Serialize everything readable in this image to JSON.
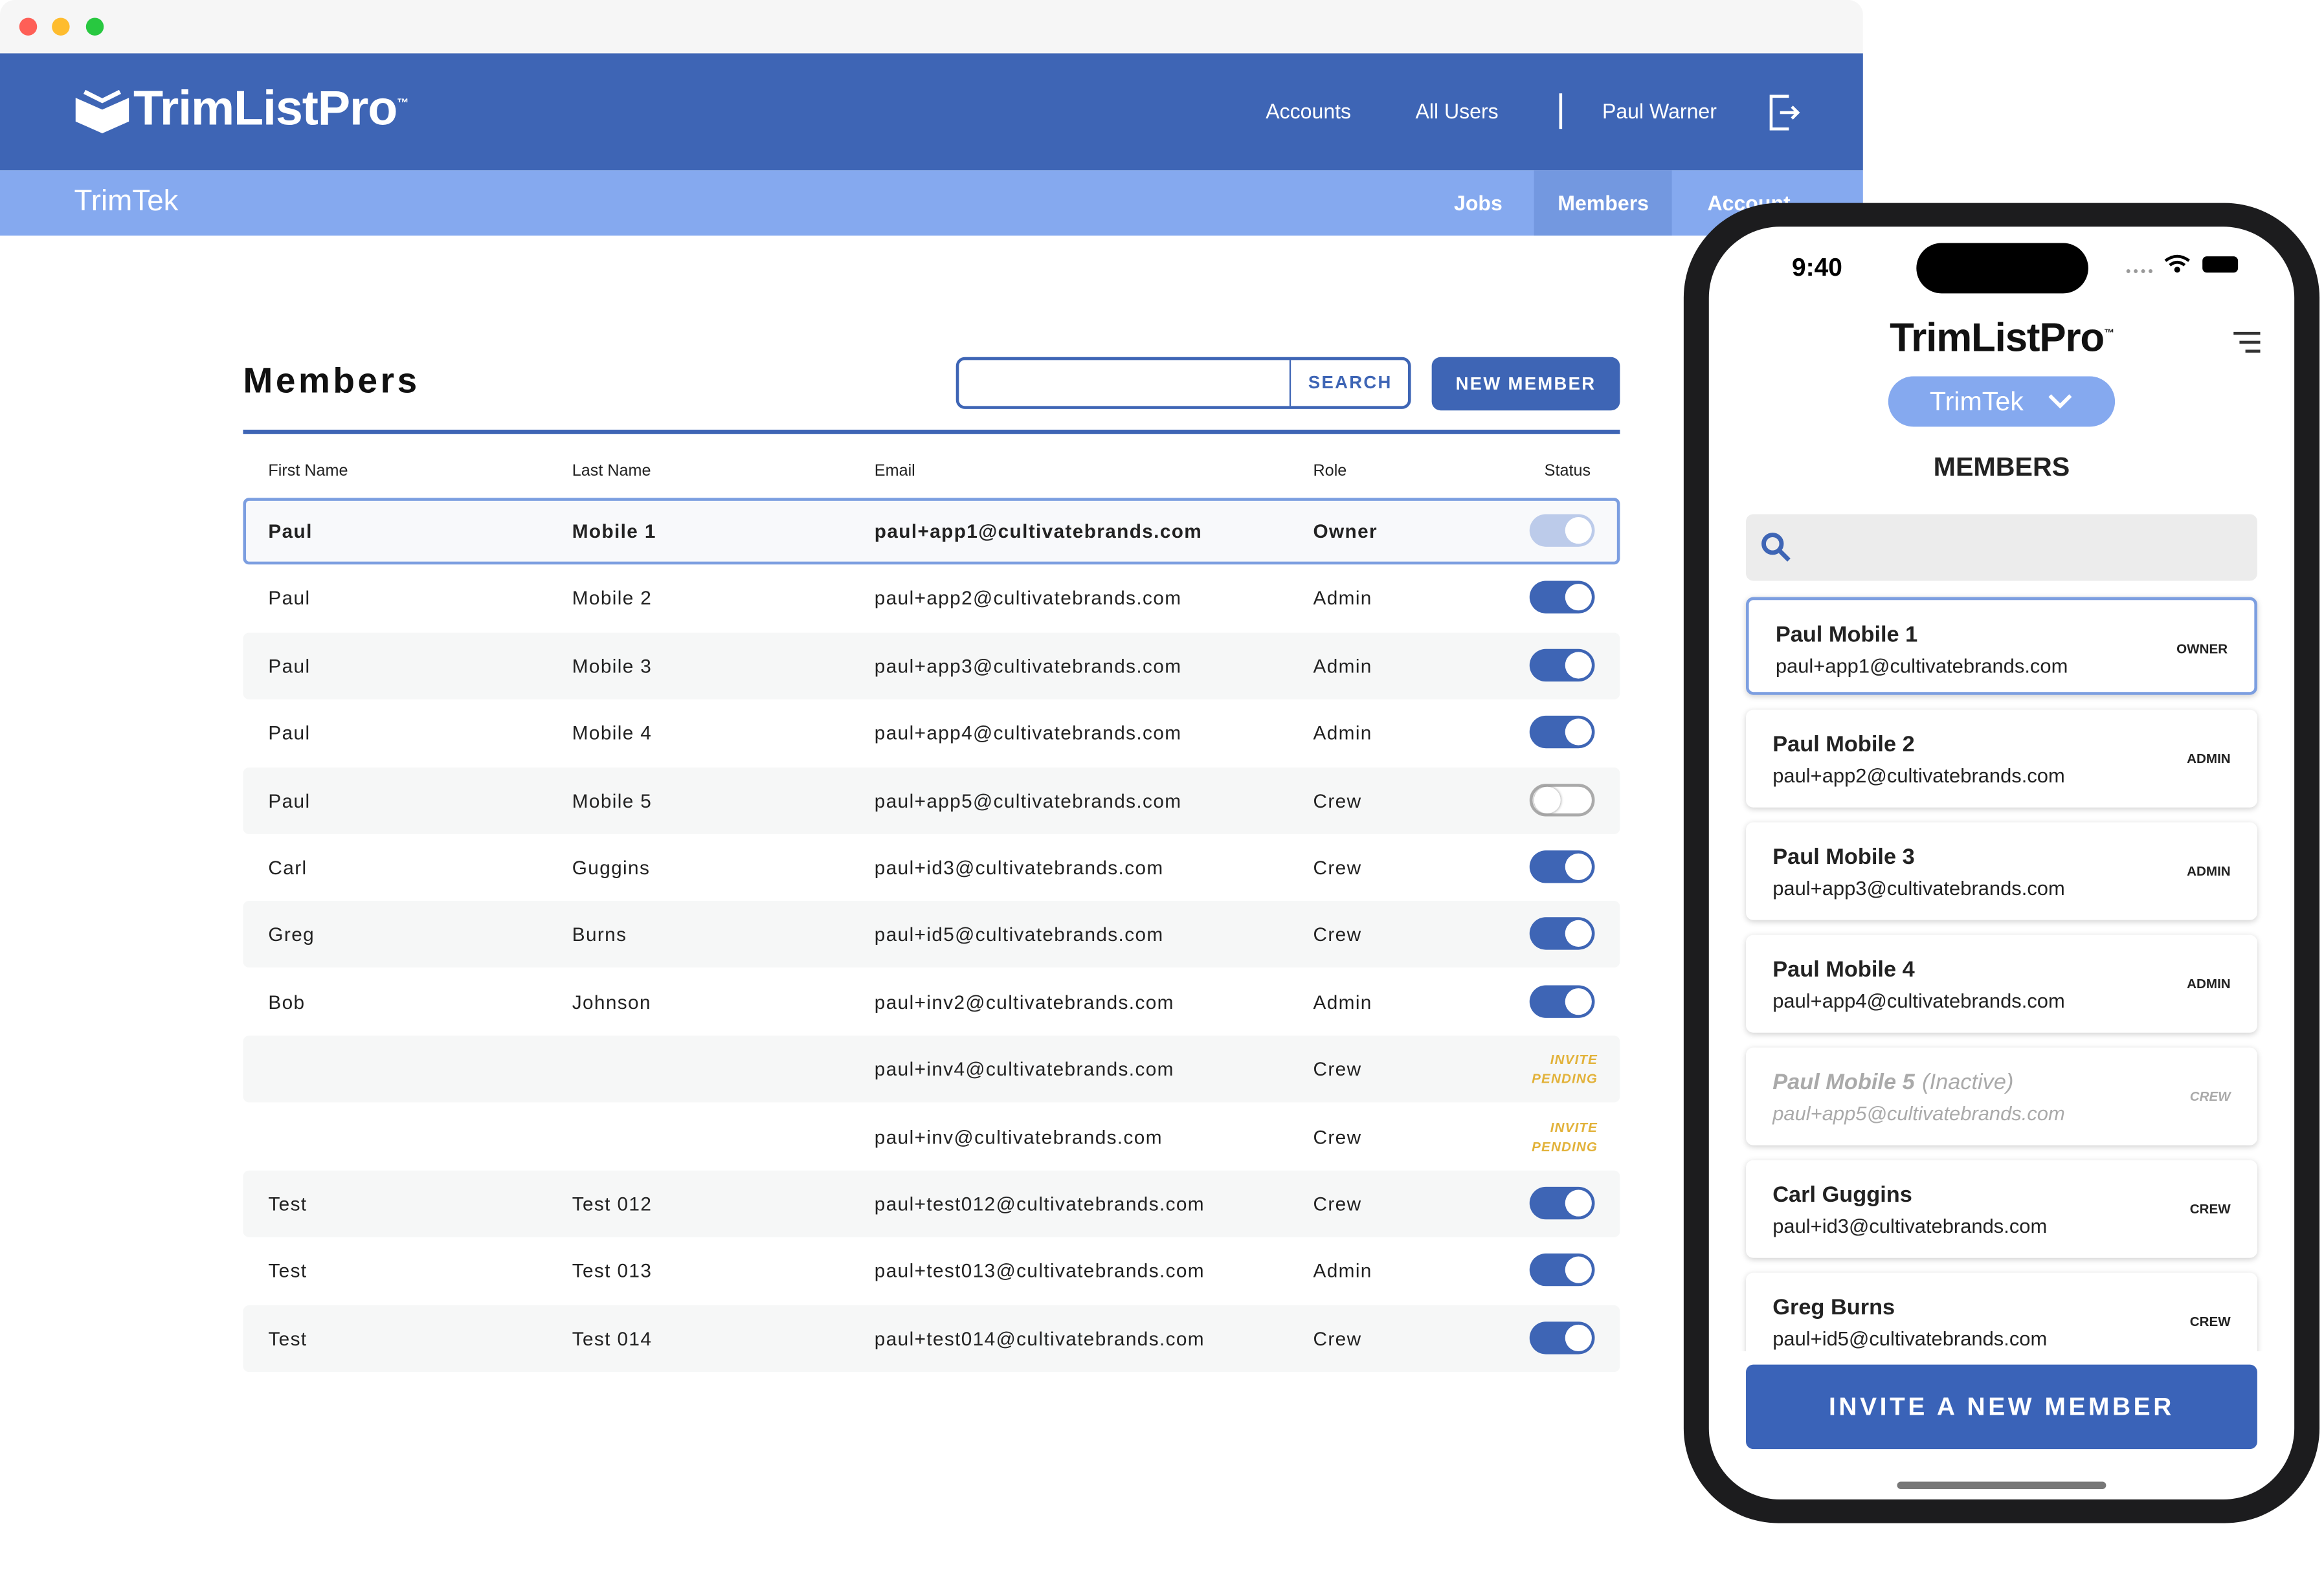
{
  "window": {
    "brand": "TrimListPro",
    "trademark": "™",
    "nav": [
      "Accounts",
      "All Users"
    ],
    "user": "Paul Warner",
    "org": "TrimTek",
    "tabs": [
      "Jobs",
      "Members",
      "Account"
    ],
    "active_tab": 1
  },
  "members_page": {
    "title": "Members",
    "search_button": "SEARCH",
    "new_button": "NEW MEMBER",
    "columns": [
      "First Name",
      "Last Name",
      "Email",
      "Role",
      "Status"
    ],
    "selected_row": 0,
    "rows": [
      {
        "first": "Paul",
        "last": "Mobile 1",
        "email": "paul+app1@cultivatebrands.com",
        "role": "Owner",
        "toggle": "disabled"
      },
      {
        "first": "Paul",
        "last": "Mobile 2",
        "email": "paul+app2@cultivatebrands.com",
        "role": "Admin",
        "toggle": "on"
      },
      {
        "first": "Paul",
        "last": "Mobile 3",
        "email": "paul+app3@cultivatebrands.com",
        "role": "Admin",
        "toggle": "on"
      },
      {
        "first": "Paul",
        "last": "Mobile 4",
        "email": "paul+app4@cultivatebrands.com",
        "role": "Admin",
        "toggle": "on"
      },
      {
        "first": "Paul",
        "last": "Mobile 5",
        "email": "paul+app5@cultivatebrands.com",
        "role": "Crew",
        "toggle": "off"
      },
      {
        "first": "Carl",
        "last": "Guggins",
        "email": "paul+id3@cultivatebrands.com",
        "role": "Crew",
        "toggle": "on"
      },
      {
        "first": "Greg",
        "last": "Burns",
        "email": "paul+id5@cultivatebrands.com",
        "role": "Crew",
        "toggle": "on"
      },
      {
        "first": "Bob",
        "last": "Johnson",
        "email": "paul+inv2@cultivatebrands.com",
        "role": "Admin",
        "toggle": "on"
      },
      {
        "email": "paul+inv4@cultivatebrands.com",
        "role": "Crew",
        "status_label": "INVITE PENDING"
      },
      {
        "email": "paul+inv@cultivatebrands.com",
        "role": "Crew",
        "status_label": "INVITE PENDING"
      },
      {
        "first": "Test",
        "last": "Test 012",
        "email": "paul+test012@cultivatebrands.com",
        "role": "Crew",
        "toggle": "on"
      },
      {
        "first": "Test",
        "last": "Test 013",
        "email": "paul+test013@cultivatebrands.com",
        "role": "Admin",
        "toggle": "on"
      },
      {
        "first": "Test",
        "last": "Test 014",
        "email": "paul+test014@cultivatebrands.com",
        "role": "Crew",
        "toggle": "on"
      }
    ]
  },
  "phone": {
    "time": "9:40",
    "brand": "TrimListPro",
    "trademark": "™",
    "org": "TrimTek",
    "title": "MEMBERS",
    "selected_card": 0,
    "cards": [
      {
        "name": "Paul Mobile 1",
        "email": "paul+app1@cultivatebrands.com",
        "role": "OWNER"
      },
      {
        "name": "Paul Mobile 2",
        "email": "paul+app2@cultivatebrands.com",
        "role": "ADMIN"
      },
      {
        "name": "Paul Mobile 3",
        "email": "paul+app3@cultivatebrands.com",
        "role": "ADMIN"
      },
      {
        "name": "Paul Mobile 4",
        "email": "paul+app4@cultivatebrands.com",
        "role": "ADMIN"
      },
      {
        "name": "Paul Mobile 5",
        "status": "(Inactive)",
        "email": "paul+app5@cultivatebrands.com",
        "role": "CREW"
      },
      {
        "name": "Carl Guggins",
        "email": "paul+id3@cultivatebrands.com",
        "role": "CREW"
      },
      {
        "name": "Greg Burns",
        "email": "paul+id5@cultivatebrands.com",
        "role": "CREW"
      }
    ],
    "invite_button": "INVITE A NEW MEMBER"
  }
}
